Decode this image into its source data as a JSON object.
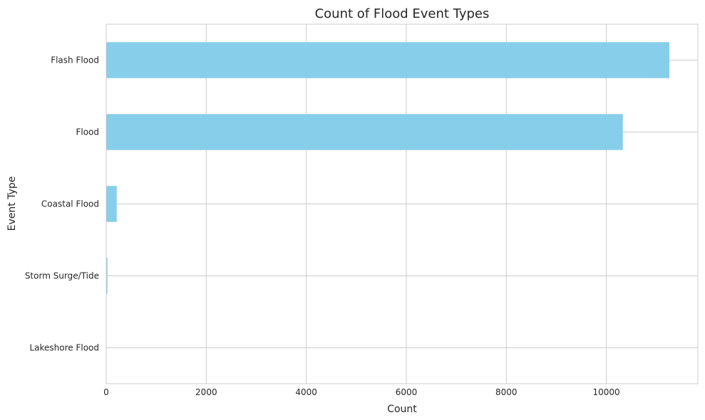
{
  "chart_data": {
    "type": "bar",
    "orientation": "horizontal",
    "title": "Count of Flood Event Types",
    "xlabel": "Count",
    "ylabel": "Event Type",
    "categories": [
      "Flash Flood",
      "Flood",
      "Coastal Flood",
      "Storm Surge/Tide",
      "Lakeshore Flood"
    ],
    "values": [
      11260,
      10330,
      210,
      25,
      3
    ],
    "xlim": [
      0,
      11830
    ],
    "xticks": [
      0,
      2000,
      4000,
      6000,
      8000,
      10000
    ],
    "grid": true,
    "legend": "none",
    "colors": {
      "bar": "#87ceeb",
      "grid": "#cccccc",
      "spine": "#cccccc",
      "text": "#262626",
      "background": "#ffffff"
    }
  }
}
